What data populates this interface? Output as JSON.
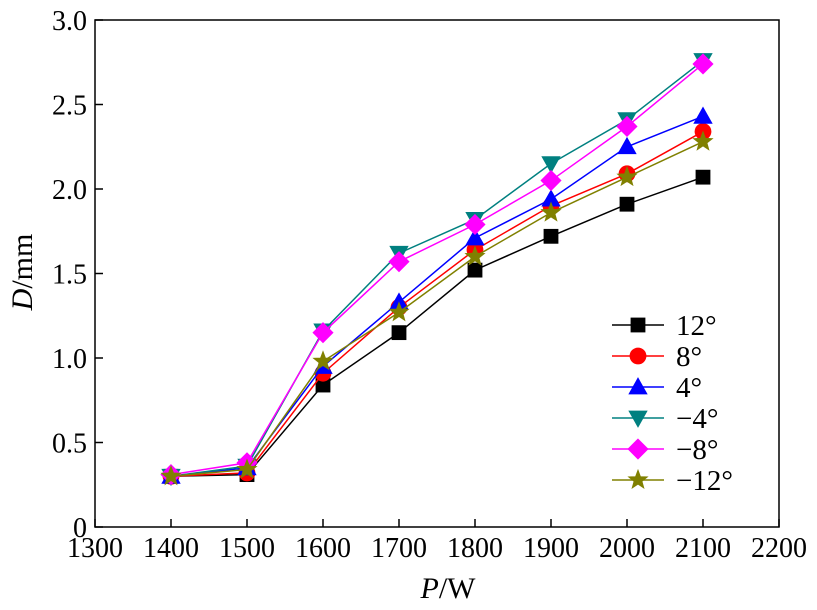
{
  "chart_data": {
    "type": "line",
    "title": "",
    "xlabel_var": "P",
    "xlabel_unit": "/W",
    "ylabel_var": "D",
    "ylabel_unit": "/mm",
    "xlim": [
      1300,
      2200
    ],
    "ylim": [
      0,
      3.0
    ],
    "xticks": [
      1300,
      1400,
      1500,
      1600,
      1700,
      1800,
      1900,
      2000,
      2100,
      2200
    ],
    "xtick_labels": [
      "1300",
      "1400",
      "1500",
      "1600",
      "1700",
      "1800",
      "1900",
      "2000",
      "2100",
      "2200"
    ],
    "yticks": [
      0,
      0.5,
      1.0,
      1.5,
      2.0,
      2.5,
      3.0
    ],
    "ytick_labels": [
      "0",
      "0.5",
      "1.0",
      "1.5",
      "2.0",
      "2.5",
      "3.0"
    ],
    "grid": false,
    "legend_position": "bottom-right",
    "x": [
      1400,
      1500,
      1600,
      1700,
      1800,
      1900,
      2000,
      2100
    ],
    "series": [
      {
        "name": "12°",
        "color": "#000000",
        "marker": "square",
        "values": [
          0.3,
          0.31,
          0.84,
          1.15,
          1.52,
          1.72,
          1.91,
          2.07
        ]
      },
      {
        "name": "8°",
        "color": "#ff0000",
        "marker": "circle",
        "values": [
          0.3,
          0.32,
          0.91,
          1.3,
          1.64,
          1.9,
          2.09,
          2.34
        ]
      },
      {
        "name": "4°",
        "color": "#0000ff",
        "marker": "triangle-up",
        "values": [
          0.3,
          0.35,
          0.95,
          1.33,
          1.71,
          1.94,
          2.25,
          2.43
        ]
      },
      {
        "name": "−4°",
        "color": "#008080",
        "marker": "triangle-down",
        "values": [
          0.3,
          0.36,
          1.16,
          1.62,
          1.82,
          2.15,
          2.41,
          2.76
        ]
      },
      {
        "name": "−8°",
        "color": "#ff00ff",
        "marker": "diamond",
        "values": [
          0.31,
          0.38,
          1.15,
          1.57,
          1.79,
          2.05,
          2.37,
          2.74
        ]
      },
      {
        "name": "−12°",
        "color": "#808000",
        "marker": "star",
        "values": [
          0.3,
          0.34,
          0.98,
          1.27,
          1.6,
          1.86,
          2.07,
          2.28
        ]
      }
    ]
  }
}
